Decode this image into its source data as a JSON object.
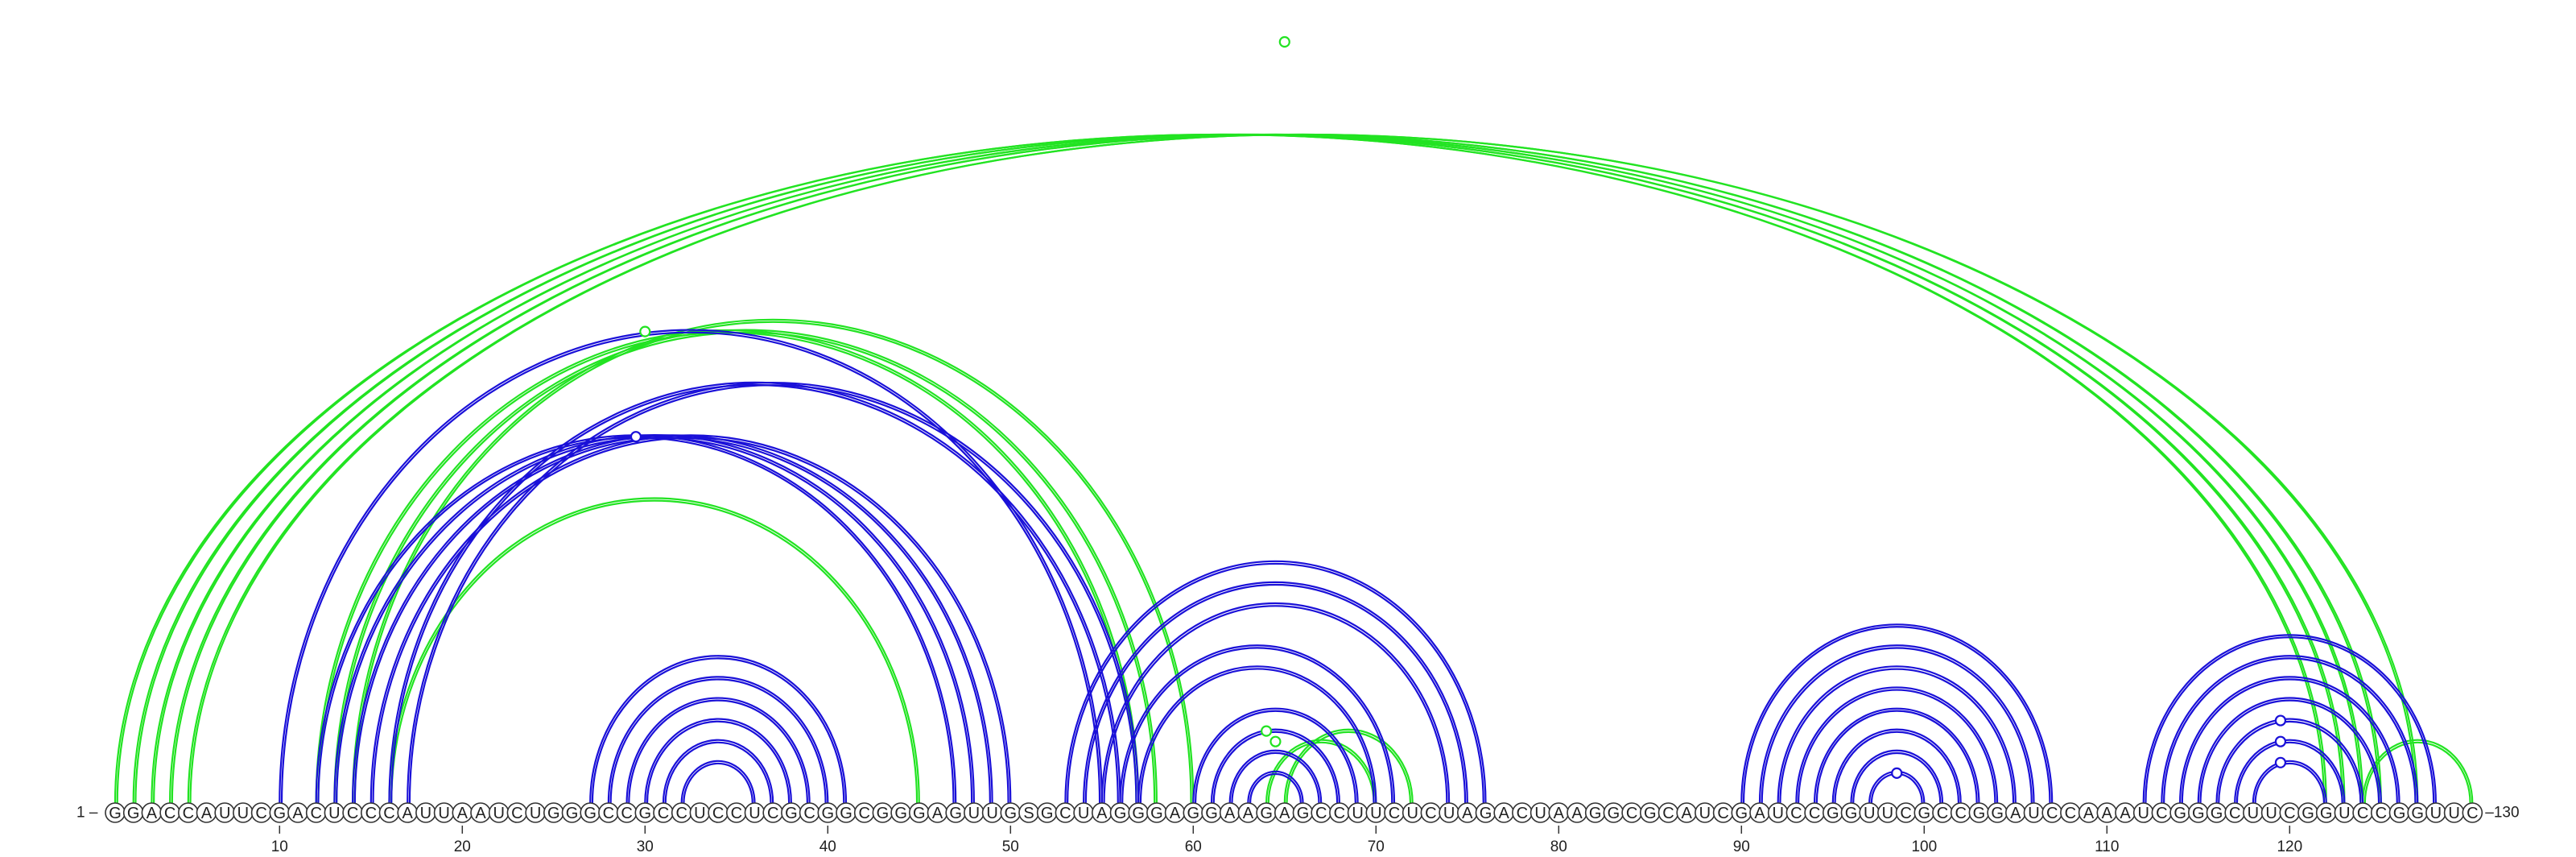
{
  "sequence": "GGACCAUUCGACUCCCAUUAAUCUGGGCCGCCUCCUCGCGGCGGGAGUUGSGCUAGGGAGGAAGAGCCUUCUCUAGACUAAGGCGCAUCGAUCCGGUUCGCCGGAUCCAAAUCGGGCUUCGGUCCGGUUC",
  "labels": {
    "start": "1 –",
    "end": "–130"
  },
  "ticks": [
    10,
    20,
    30,
    40,
    50,
    60,
    70,
    80,
    90,
    100,
    110,
    120
  ],
  "colors": {
    "green": "#22e322",
    "blue": "#1a10d8",
    "circle": "#333333"
  },
  "arcs": {
    "green": [
      [
        1,
        122
      ],
      [
        2,
        123
      ],
      [
        3,
        124
      ],
      [
        4,
        125
      ],
      [
        5,
        127
      ],
      [
        12,
        57
      ],
      [
        13,
        58
      ],
      [
        16,
        45
      ],
      [
        14,
        60
      ],
      [
        65,
        72
      ],
      [
        64,
        70
      ],
      [
        124,
        130
      ]
    ],
    "blue": [
      [
        10,
        55
      ],
      [
        12,
        47
      ],
      [
        13,
        48
      ],
      [
        14,
        49
      ],
      [
        15,
        50
      ],
      [
        16,
        56
      ],
      [
        17,
        57
      ],
      [
        27,
        41
      ],
      [
        28,
        40
      ],
      [
        29,
        39
      ],
      [
        30,
        38
      ],
      [
        31,
        37
      ],
      [
        32,
        36
      ],
      [
        53,
        76
      ],
      [
        54,
        75
      ],
      [
        55,
        74
      ],
      [
        56,
        71
      ],
      [
        57,
        70
      ],
      [
        60,
        69
      ],
      [
        61,
        68
      ],
      [
        62,
        67
      ],
      [
        63,
        66
      ],
      [
        90,
        107
      ],
      [
        91,
        106
      ],
      [
        92,
        105
      ],
      [
        93,
        104
      ],
      [
        94,
        103
      ],
      [
        95,
        102
      ],
      [
        96,
        101
      ],
      [
        97,
        100
      ],
      [
        112,
        128
      ],
      [
        113,
        127
      ],
      [
        114,
        126
      ],
      [
        115,
        125
      ],
      [
        116,
        124
      ],
      [
        117,
        123
      ],
      [
        118,
        122
      ]
    ]
  },
  "markers": {
    "green": [
      65,
      30,
      64.5,
      64
    ],
    "blue": [
      29.5,
      98.5,
      119.5,
      119.5,
      119.5
    ]
  }
}
